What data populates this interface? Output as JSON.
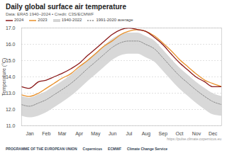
{
  "chart_data": {
    "type": "line",
    "title": "Daily global surface air temperature",
    "subtitle": "Data: ERA5 1940–2024 • Credit: C3S/ECMWF",
    "y_label": "Temperature (°C)",
    "x": [
      1,
      15,
      32,
      46,
      60,
      74,
      91,
      105,
      121,
      135,
      152,
      166,
      182,
      196,
      213,
      227,
      244,
      258,
      274,
      288,
      305,
      319,
      335,
      349,
      366
    ],
    "xlim": [
      1,
      366
    ],
    "xticks": [
      {
        "value": 16,
        "label": "Jan"
      },
      {
        "value": 46,
        "label": "Feb"
      },
      {
        "value": 75,
        "label": "Mar"
      },
      {
        "value": 106,
        "label": "Apr"
      },
      {
        "value": 136,
        "label": "May"
      },
      {
        "value": 167,
        "label": "Jun"
      },
      {
        "value": 197,
        "label": "Jul"
      },
      {
        "value": 228,
        "label": "Aug"
      },
      {
        "value": 259,
        "label": "Sep"
      },
      {
        "value": 289,
        "label": "Oct"
      },
      {
        "value": 320,
        "label": "Nov"
      },
      {
        "value": 350,
        "label": "Dec"
      }
    ],
    "ylim": [
      11,
      17
    ],
    "yticks": [
      11,
      12,
      13,
      14,
      15,
      16,
      17
    ],
    "grid": true,
    "series": [
      {
        "name": "1940-2022",
        "color": "#d4d4d4",
        "type": "area",
        "low": [
          11.6,
          11.5,
          11.6,
          11.8,
          12.1,
          12.4,
          12.8,
          13.2,
          13.7,
          14.1,
          14.6,
          15.0,
          15.3,
          15.4,
          15.4,
          15.2,
          14.9,
          14.4,
          13.8,
          13.3,
          12.8,
          12.4,
          12.0,
          11.7,
          11.6
        ],
        "high": [
          12.8,
          12.7,
          12.9,
          13.1,
          13.4,
          13.7,
          14.1,
          14.5,
          15.0,
          15.4,
          15.9,
          16.3,
          16.6,
          16.7,
          16.7,
          16.5,
          16.2,
          15.7,
          15.1,
          14.6,
          14.1,
          13.7,
          13.3,
          13.0,
          12.8
        ]
      },
      {
        "name": "1991-2020 average",
        "color": "#8a8a8a",
        "line_style": "dashed",
        "values": [
          12.3,
          12.2,
          12.4,
          12.6,
          12.9,
          13.2,
          13.6,
          14.0,
          14.5,
          14.9,
          15.4,
          15.8,
          16.1,
          16.2,
          16.2,
          16.0,
          15.7,
          15.2,
          14.6,
          14.1,
          13.6,
          13.2,
          12.8,
          12.5,
          12.3
        ]
      },
      {
        "name": "2023",
        "color": "#e8902a",
        "values": [
          12.9,
          12.8,
          13.0,
          13.3,
          13.6,
          13.9,
          14.2,
          14.6,
          15.0,
          15.4,
          15.9,
          16.2,
          16.6,
          16.8,
          16.9,
          16.8,
          16.5,
          16.1,
          15.6,
          15.1,
          14.6,
          14.2,
          13.8,
          13.6,
          13.4
        ]
      },
      {
        "name": "2024",
        "color": "#8b1a1a",
        "values": [
          13.4,
          13.3,
          13.7,
          13.8,
          14.0,
          14.2,
          14.5,
          14.8,
          15.3,
          15.7,
          16.2,
          16.6,
          16.9,
          17.0,
          16.9,
          16.8,
          16.4,
          16.0,
          15.4,
          14.9,
          14.4,
          14.0,
          13.7,
          13.4,
          13.4
        ]
      }
    ],
    "legend_order": [
      "2024",
      "2023",
      "1940-2022",
      "1991-2020 average"
    ],
    "footer": [
      "PROGRAMME OF THE EUROPEAN UNION",
      "Copernicus",
      "ECMWF",
      "Climate Change Service"
    ],
    "url": "https://pulse.climate.copernicus.eu"
  }
}
